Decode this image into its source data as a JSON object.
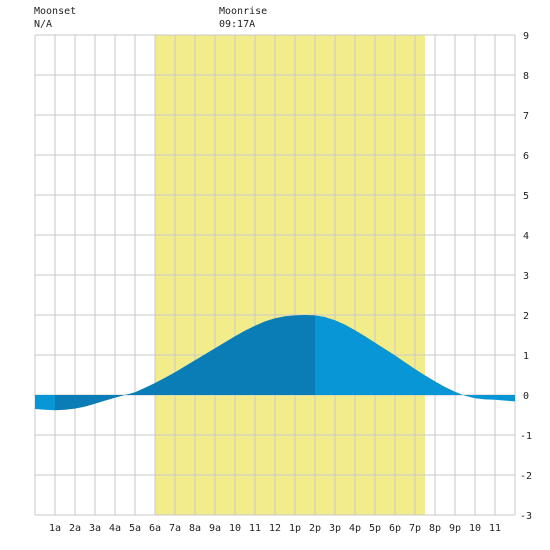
{
  "header": {
    "moonset_label": "Moonset",
    "moonset_time": "N/A",
    "moonrise_label": "Moonrise",
    "moonrise_time": "09:17A"
  },
  "colors": {
    "daylight": "#f3ec8a",
    "tide_light": "#0896d6",
    "tide_dark": "#0a7db7",
    "grid": "#c8c8c8",
    "plot_bg": "#ffffff"
  },
  "chart_data": {
    "type": "area",
    "title": "",
    "xlabel": "",
    "ylabel": "",
    "x_tick_labels": [
      "1a",
      "2a",
      "3a",
      "4a",
      "5a",
      "6a",
      "7a",
      "8a",
      "9a",
      "10",
      "11",
      "12",
      "1p",
      "2p",
      "3p",
      "4p",
      "5p",
      "6p",
      "7p",
      "8p",
      "9p",
      "10",
      "11"
    ],
    "x_tick_hours": [
      1,
      2,
      3,
      4,
      5,
      6,
      7,
      8,
      9,
      10,
      11,
      12,
      13,
      14,
      15,
      16,
      17,
      18,
      19,
      20,
      21,
      22,
      23
    ],
    "xlim": [
      0,
      24
    ],
    "ylim": [
      -3,
      9
    ],
    "y_ticks": [
      -3,
      -2,
      -1,
      0,
      1,
      2,
      3,
      4,
      5,
      6,
      7,
      8,
      9
    ],
    "y_axis_side": "right",
    "grid": true,
    "daylight_hours": [
      6.0,
      19.5
    ],
    "low_tide_hour": 1.0,
    "high_tide_hour": 14.0,
    "series": [
      {
        "name": "",
        "x": [
          0,
          0.5,
          1,
          1.5,
          2,
          2.5,
          3,
          3.5,
          4,
          4.5,
          5,
          5.5,
          6,
          6.5,
          7,
          7.5,
          8,
          8.5,
          9,
          9.5,
          10,
          10.5,
          11,
          11.5,
          12,
          12.5,
          13,
          13.5,
          14,
          14.5,
          15,
          15.5,
          16,
          16.5,
          17,
          17.5,
          18,
          18.5,
          19,
          19.5,
          20,
          20.5,
          21,
          21.5,
          22,
          22.5,
          23,
          23.5,
          24
        ],
        "values": [
          -0.35,
          -0.37,
          -0.38,
          -0.37,
          -0.34,
          -0.29,
          -0.22,
          -0.14,
          -0.07,
          0.0,
          0.07,
          0.18,
          0.3,
          0.43,
          0.57,
          0.72,
          0.87,
          1.02,
          1.17,
          1.32,
          1.47,
          1.61,
          1.73,
          1.84,
          1.92,
          1.97,
          1.99,
          2.0,
          1.99,
          1.95,
          1.87,
          1.76,
          1.62,
          1.47,
          1.31,
          1.15,
          0.99,
          0.82,
          0.65,
          0.49,
          0.34,
          0.2,
          0.08,
          -0.02,
          -0.08,
          -0.11,
          -0.12,
          -0.14,
          -0.16
        ]
      }
    ]
  }
}
